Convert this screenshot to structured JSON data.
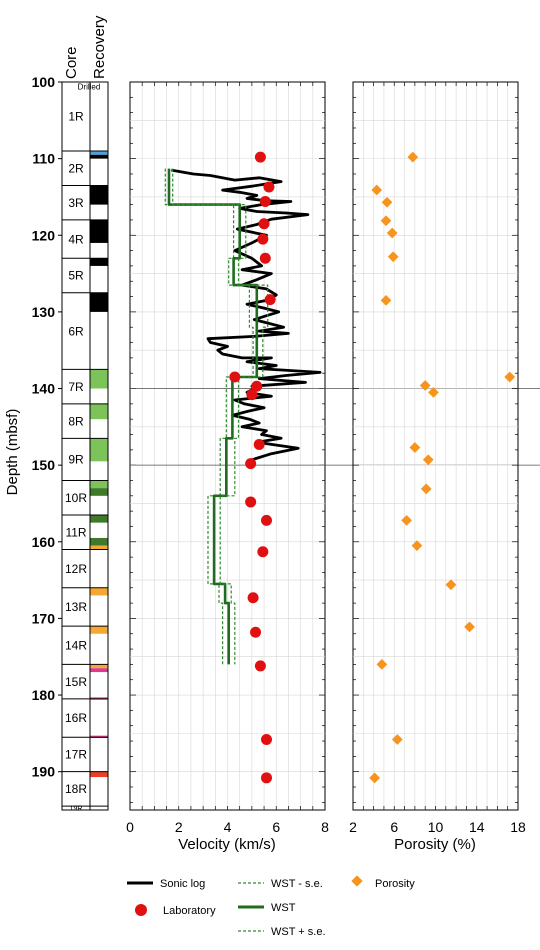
{
  "chart_data": [
    {
      "type": "table",
      "column_headers": [
        "Core",
        "Recovery"
      ],
      "depth_label": "Depth (mbsf)",
      "depth_ticks": [
        100,
        110,
        120,
        130,
        140,
        150,
        160,
        170,
        180,
        190
      ],
      "ylim": [
        100,
        195
      ],
      "drilled_label": "Drilled",
      "cores": [
        {
          "label": "1R",
          "top": 100,
          "bottom": 109
        },
        {
          "label": "2R",
          "top": 109,
          "bottom": 113.5
        },
        {
          "label": "3R",
          "top": 113.5,
          "bottom": 118
        },
        {
          "label": "4R",
          "top": 118,
          "bottom": 123
        },
        {
          "label": "5R",
          "top": 123,
          "bottom": 127.5
        },
        {
          "label": "6R",
          "top": 127.5,
          "bottom": 137.5
        },
        {
          "label": "7R",
          "top": 137.5,
          "bottom": 142
        },
        {
          "label": "8R",
          "top": 142,
          "bottom": 146.5
        },
        {
          "label": "9R",
          "top": 146.5,
          "bottom": 152
        },
        {
          "label": "10R",
          "top": 152,
          "bottom": 156.5
        },
        {
          "label": "11R",
          "top": 156.5,
          "bottom": 161
        },
        {
          "label": "12R",
          "top": 161,
          "bottom": 166
        },
        {
          "label": "13R",
          "top": 166,
          "bottom": 171
        },
        {
          "label": "14R",
          "top": 171,
          "bottom": 176
        },
        {
          "label": "15R",
          "top": 176,
          "bottom": 180.5
        },
        {
          "label": "16R",
          "top": 180.5,
          "bottom": 185.5
        },
        {
          "label": "17R",
          "top": 185.5,
          "bottom": 190
        },
        {
          "label": "18R",
          "top": 190,
          "bottom": 194.5
        },
        {
          "label": "19R",
          "top": 194.5,
          "bottom": 195
        }
      ],
      "recovery": [
        {
          "top": 109,
          "bottom": 109.5,
          "color": "#4aa3df"
        },
        {
          "top": 109.5,
          "bottom": 110,
          "color": "#000000"
        },
        {
          "top": 113.5,
          "bottom": 116,
          "color": "#000000"
        },
        {
          "top": 118,
          "bottom": 121,
          "color": "#000000"
        },
        {
          "top": 123,
          "bottom": 124,
          "color": "#000000"
        },
        {
          "top": 127.5,
          "bottom": 130,
          "color": "#000000"
        },
        {
          "top": 137.5,
          "bottom": 140,
          "color": "#7cc35a"
        },
        {
          "top": 142,
          "bottom": 144,
          "color": "#7cc35a"
        },
        {
          "top": 146.5,
          "bottom": 149.5,
          "color": "#7cc35a"
        },
        {
          "top": 152,
          "bottom": 153,
          "color": "#7cc35a"
        },
        {
          "top": 153,
          "bottom": 154,
          "color": "#3f7a2a"
        },
        {
          "top": 156.5,
          "bottom": 157.5,
          "color": "#3f7a2a"
        },
        {
          "top": 159.5,
          "bottom": 160.5,
          "color": "#3f7a2a"
        },
        {
          "top": 160.5,
          "bottom": 161,
          "color": "#f7a733"
        },
        {
          "top": 166,
          "bottom": 167,
          "color": "#f7a733"
        },
        {
          "top": 171,
          "bottom": 172,
          "color": "#f7a733"
        },
        {
          "top": 176,
          "bottom": 176.5,
          "color": "#f7a733"
        },
        {
          "top": 176.5,
          "bottom": 177,
          "color": "#e03a8e"
        },
        {
          "top": 180.3,
          "bottom": 180.6,
          "color": "#e03a8e"
        },
        {
          "top": 185.3,
          "bottom": 185.6,
          "color": "#e03a8e"
        },
        {
          "top": 190,
          "bottom": 190.7,
          "color": "#e8402a"
        }
      ]
    },
    {
      "type": "line",
      "xlabel": "Velocity (km/s)",
      "xlim": [
        0,
        8
      ],
      "xticks": [
        0,
        2,
        4,
        6,
        8
      ],
      "ylim": [
        100,
        195
      ],
      "grid": true,
      "series": [
        {
          "name": "Sonic log",
          "style": "solid",
          "color": "#000000",
          "points": [
            [
              1.7,
              111.5
            ],
            [
              2.6,
              112
            ],
            [
              3.3,
              112.2
            ],
            [
              4.3,
              112.8
            ],
            [
              5.3,
              112.5
            ],
            [
              6.2,
              113
            ],
            [
              5,
              113.6
            ],
            [
              3.8,
              114.1
            ],
            [
              4.5,
              114.4
            ],
            [
              5.2,
              114.8
            ],
            [
              4.8,
              115.2
            ],
            [
              5.6,
              115.5
            ],
            [
              6.6,
              115.6
            ],
            [
              5.4,
              116
            ],
            [
              4.5,
              116.5
            ],
            [
              5.2,
              116.9
            ],
            [
              6.4,
              117.1
            ],
            [
              7.3,
              117.3
            ],
            [
              5.8,
              117.9
            ],
            [
              5.2,
              118.6
            ],
            [
              4.4,
              119.2
            ],
            [
              5.6,
              120
            ],
            [
              5,
              121
            ],
            [
              4.3,
              122
            ],
            [
              5,
              123
            ],
            [
              5.4,
              124
            ],
            [
              4.6,
              124.5
            ],
            [
              5.8,
              125
            ],
            [
              5.2,
              125.8
            ],
            [
              4.6,
              126.5
            ],
            [
              5.6,
              127
            ],
            [
              6,
              127.8
            ],
            [
              5.6,
              128.5
            ],
            [
              4.8,
              129
            ],
            [
              5.5,
              129.5
            ],
            [
              6.1,
              130
            ],
            [
              5.6,
              130.5
            ],
            [
              5.1,
              131
            ],
            [
              5.7,
              131.5
            ],
            [
              6.3,
              132
            ],
            [
              5.3,
              132.5
            ],
            [
              6.5,
              132.8
            ],
            [
              5.1,
              133.2
            ],
            [
              3.2,
              133.5
            ],
            [
              3.3,
              134
            ],
            [
              4,
              134.5
            ],
            [
              3.6,
              135
            ],
            [
              3.8,
              135.5
            ],
            [
              4.6,
              136
            ],
            [
              5.8,
              136
            ],
            [
              4.8,
              136.5
            ],
            [
              6,
              137
            ],
            [
              5.3,
              137.4
            ],
            [
              7.8,
              137.9
            ],
            [
              6.4,
              138.3
            ],
            [
              5.3,
              138.7
            ],
            [
              7.2,
              139.2
            ],
            [
              5,
              139.7
            ],
            [
              5.1,
              140
            ],
            [
              4.8,
              140.5
            ],
            [
              5.8,
              141
            ],
            [
              4.3,
              141.5
            ],
            [
              4.7,
              142
            ],
            [
              5.5,
              142.5
            ],
            [
              4.8,
              143
            ],
            [
              4.2,
              143.5
            ],
            [
              4.9,
              144
            ],
            [
              5.3,
              144.5
            ],
            [
              4.6,
              145
            ],
            [
              5.6,
              145.5
            ],
            [
              5.4,
              146
            ],
            [
              6.2,
              146.5
            ],
            [
              5.2,
              147
            ],
            [
              6.9,
              147.8
            ],
            [
              5.8,
              148.5
            ],
            [
              5,
              149.3
            ]
          ]
        },
        {
          "name": "WST - s.e.",
          "style": "dashed",
          "color": "#2e8b2e",
          "points": [
            [
              1.45,
              111.3
            ],
            [
              1.45,
              116
            ],
            [
              4.25,
              116
            ],
            [
              4.25,
              123
            ],
            [
              4.05,
              123
            ],
            [
              4.05,
              126.5
            ],
            [
              4.9,
              126.5
            ],
            [
              4.9,
              132
            ],
            [
              5.05,
              132
            ],
            [
              5.05,
              138.5
            ],
            [
              3.95,
              138.5
            ],
            [
              3.95,
              140.5
            ],
            [
              3.95,
              146.5
            ],
            [
              3.7,
              146.5
            ],
            [
              3.7,
              154
            ],
            [
              3.2,
              154
            ],
            [
              3.2,
              165.5
            ],
            [
              3.65,
              165.5
            ],
            [
              3.65,
              168
            ],
            [
              3.8,
              168
            ],
            [
              3.8,
              176
            ]
          ]
        },
        {
          "name": "WST",
          "style": "solid",
          "color": "#1f6b1f",
          "points": [
            [
              1.6,
              111.3
            ],
            [
              1.6,
              116
            ],
            [
              4.5,
              116
            ],
            [
              4.5,
              123
            ],
            [
              4.25,
              123
            ],
            [
              4.25,
              126.5
            ],
            [
              5.2,
              126.5
            ],
            [
              5.2,
              138.5
            ],
            [
              4.2,
              138.5
            ],
            [
              4.2,
              146.5
            ],
            [
              3.95,
              146.5
            ],
            [
              3.95,
              154
            ],
            [
              3.45,
              154
            ],
            [
              3.45,
              165.5
            ],
            [
              3.9,
              165.5
            ],
            [
              3.9,
              168
            ],
            [
              4.05,
              168
            ],
            [
              4.05,
              176
            ]
          ]
        },
        {
          "name": "WST + s.e.",
          "style": "dashed",
          "color": "#2e8b2e",
          "points": [
            [
              1.75,
              111.3
            ],
            [
              1.75,
              116
            ],
            [
              4.75,
              116
            ],
            [
              4.75,
              123
            ],
            [
              4.45,
              123
            ],
            [
              4.45,
              126.5
            ],
            [
              5.65,
              126.5
            ],
            [
              5.65,
              132
            ],
            [
              5.45,
              132
            ],
            [
              5.45,
              138.5
            ],
            [
              4.45,
              138.5
            ],
            [
              4.45,
              146.5
            ],
            [
              4.3,
              146.5
            ],
            [
              4.3,
              154
            ],
            [
              3.7,
              154
            ],
            [
              3.7,
              165.5
            ],
            [
              4.15,
              165.5
            ],
            [
              4.15,
              168
            ],
            [
              4.3,
              168
            ],
            [
              4.3,
              176
            ]
          ]
        },
        {
          "name": "Laboratory",
          "style": "marker",
          "color": "#e01010",
          "points": [
            [
              5.35,
              109.8
            ],
            [
              5.7,
              113.7
            ],
            [
              5.55,
              115.6
            ],
            [
              5.5,
              118.5
            ],
            [
              5.45,
              120.5
            ],
            [
              5.55,
              123
            ],
            [
              5.75,
              128.4
            ],
            [
              4.3,
              138.5
            ],
            [
              5.2,
              139.7
            ],
            [
              5,
              140.8
            ],
            [
              5.3,
              147.3
            ],
            [
              4.95,
              149.8
            ],
            [
              4.95,
              154.8
            ],
            [
              5.6,
              157.2
            ],
            [
              5.45,
              161.3
            ],
            [
              5.05,
              167.3
            ],
            [
              5.15,
              171.8
            ],
            [
              5.35,
              176.2
            ],
            [
              5.6,
              185.8
            ],
            [
              5.6,
              190.8
            ]
          ]
        }
      ]
    },
    {
      "type": "scatter",
      "xlabel": "Porosity (%)",
      "xlim": [
        2,
        18
      ],
      "xticks": [
        2,
        6,
        10,
        14,
        18
      ],
      "ylim": [
        100,
        195
      ],
      "grid": true,
      "series": [
        {
          "name": "Porosity",
          "color": "#f7941d",
          "points": [
            [
              7.8,
              109.8
            ],
            [
              4.3,
              114.1
            ],
            [
              5.3,
              115.7
            ],
            [
              5.2,
              118.1
            ],
            [
              5.8,
              119.7
            ],
            [
              5.9,
              122.8
            ],
            [
              5.2,
              128.5
            ],
            [
              17.2,
              138.5
            ],
            [
              9,
              139.6
            ],
            [
              9.8,
              140.5
            ],
            [
              8,
              147.7
            ],
            [
              9.3,
              149.3
            ],
            [
              9.1,
              153.1
            ],
            [
              7.2,
              157.2
            ],
            [
              8.2,
              160.5
            ],
            [
              11.5,
              165.6
            ],
            [
              13.3,
              171.1
            ],
            [
              4.8,
              176
            ],
            [
              6.3,
              185.8
            ],
            [
              4.1,
              190.8
            ]
          ]
        }
      ]
    }
  ],
  "legend": {
    "sonic": "Sonic log",
    "lab": "Laboratory",
    "wst_minus": "WST - s.e.",
    "wst": "WST",
    "wst_plus": "WST + s.e.",
    "porosity": "Porosity"
  }
}
